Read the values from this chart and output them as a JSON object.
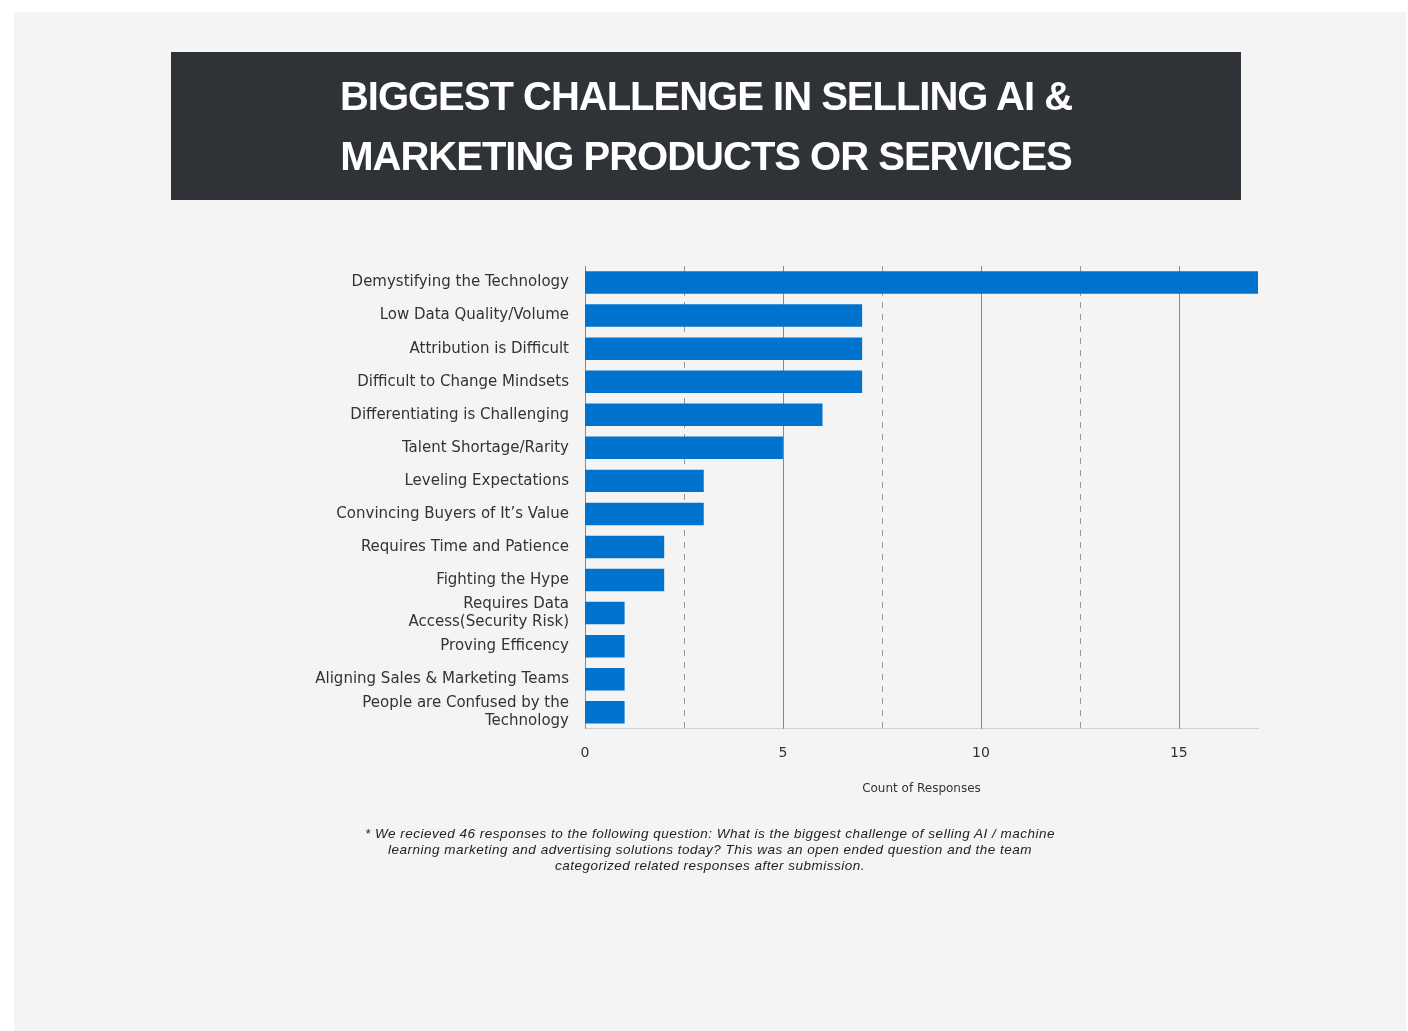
{
  "chart_data": {
    "type": "bar",
    "orientation": "horizontal",
    "title": "BIGGEST CHALLENGE IN SELLING AI & MARKETING PRODUCTS OR SERVICES",
    "xlabel": "Count of Responses",
    "categories": [
      "Demystifying the Technology",
      "Low Data Quality/Volume",
      "Attribution is Difficult",
      "Difficult to Change Mindsets",
      "Differentiating is Challenging",
      "Talent Shortage/Rarity",
      "Leveling Expectations",
      "Convincing Buyers of It’s Value",
      "Requires Time and Patience",
      "Fighting the Hype",
      "Requires Data Access(Security Risk)",
      "Proving Efficency",
      "Aligning Sales & Marketing Teams",
      "People are Confused by the Technology"
    ],
    "values": [
      17,
      7,
      7,
      7,
      6,
      5,
      3,
      3,
      2,
      2,
      1,
      1,
      1,
      1
    ],
    "color": "#0073cf",
    "xlim": [
      0,
      17
    ],
    "xticks": [
      0,
      {
        "value": 2.5,
        "label": null
      },
      5,
      {
        "value": 7.5,
        "label": null
      },
      10,
      {
        "value": 12.5,
        "label": null
      },
      15
    ],
    "grid": "x",
    "legend": false,
    "annotations": [
      "* We recieved 46 responses to the following question: What is the biggest challenge of selling AI / machine learning marketing and advertising solutions today? This was an open ended question and the team categorized related responses after submission."
    ]
  }
}
